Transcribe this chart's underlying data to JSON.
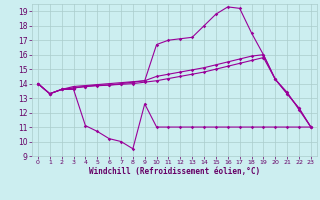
{
  "background_color": "#cceef0",
  "grid_color": "#aacccc",
  "line_color": "#990099",
  "xlabel": "Windchill (Refroidissement éolien,°C)",
  "xlabel_color": "#660066",
  "ytick_color": "#660066",
  "xtick_color": "#660066",
  "ylim": [
    9,
    19.5
  ],
  "xlim": [
    -0.5,
    23.5
  ],
  "yticks": [
    9,
    10,
    11,
    12,
    13,
    14,
    15,
    16,
    17,
    18,
    19
  ],
  "xticks": [
    0,
    1,
    2,
    3,
    4,
    5,
    6,
    7,
    8,
    9,
    10,
    11,
    12,
    13,
    14,
    15,
    16,
    17,
    18,
    19,
    20,
    21,
    22,
    23
  ],
  "line1_x": [
    0,
    1,
    2,
    3,
    4,
    5,
    6,
    7,
    8,
    9,
    10,
    11,
    12,
    13,
    14,
    15,
    16,
    17,
    18,
    19,
    20,
    21,
    22,
    23
  ],
  "line1_y": [
    14.0,
    13.3,
    13.6,
    13.6,
    11.1,
    10.7,
    10.2,
    10.0,
    9.5,
    12.6,
    11.0,
    11.0,
    11.0,
    11.0,
    11.0,
    11.0,
    11.0,
    11.0,
    11.0,
    11.0,
    11.0,
    11.0,
    11.0,
    11.0
  ],
  "line2_x": [
    0,
    1,
    2,
    3,
    4,
    5,
    6,
    7,
    8,
    9,
    10,
    11,
    12,
    13,
    14,
    15,
    16,
    17,
    18,
    19,
    20,
    21,
    22,
    23
  ],
  "line2_y": [
    14.0,
    13.3,
    13.6,
    13.7,
    13.8,
    13.85,
    13.9,
    13.95,
    14.0,
    14.1,
    14.2,
    14.35,
    14.5,
    14.65,
    14.8,
    15.0,
    15.2,
    15.4,
    15.6,
    15.8,
    14.3,
    13.3,
    12.3,
    11.0
  ],
  "line3_x": [
    0,
    1,
    2,
    3,
    4,
    5,
    6,
    7,
    8,
    9,
    10,
    11,
    12,
    13,
    14,
    15,
    16,
    17,
    18,
    19,
    20,
    21,
    22,
    23
  ],
  "line3_y": [
    14.0,
    13.3,
    13.6,
    13.7,
    13.8,
    13.9,
    13.9,
    14.0,
    14.1,
    14.2,
    14.5,
    14.65,
    14.8,
    14.95,
    15.1,
    15.3,
    15.5,
    15.7,
    15.9,
    16.0,
    14.3,
    13.3,
    12.3,
    11.0
  ],
  "line4_x": [
    0,
    1,
    2,
    3,
    9,
    10,
    11,
    12,
    13,
    14,
    15,
    16,
    17,
    18,
    19,
    20,
    21,
    22,
    23
  ],
  "line4_y": [
    14.0,
    13.3,
    13.6,
    13.8,
    14.2,
    16.7,
    17.0,
    17.1,
    17.2,
    18.0,
    18.8,
    19.3,
    19.2,
    17.5,
    16.0,
    14.3,
    13.4,
    12.2,
    11.0
  ]
}
